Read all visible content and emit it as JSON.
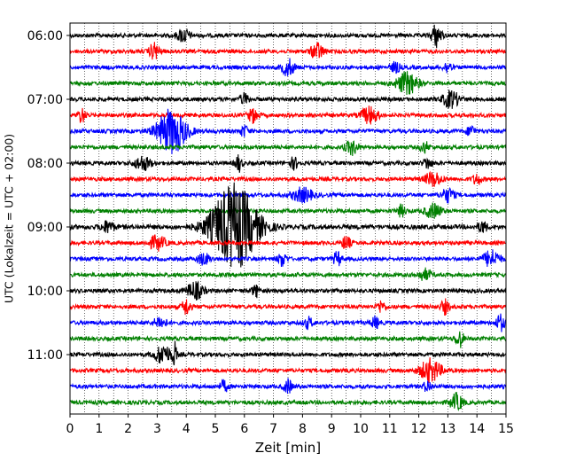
{
  "chart_data": {
    "type": "line",
    "subtype": "helicorder",
    "title": "",
    "xlabel": "Zeit  [min]",
    "ylabel": "UTC (Lokalzeit = UTC + 02:00)",
    "xlim": [
      0,
      15
    ],
    "x_ticks": [
      "0",
      "1",
      "2",
      "3",
      "4",
      "5",
      "6",
      "7",
      "8",
      "9",
      "10",
      "11",
      "12",
      "13",
      "14",
      "15"
    ],
    "y_tick_labels": [
      "06:00",
      "07:00",
      "08:00",
      "09:00",
      "10:00",
      "11:00"
    ],
    "grid": {
      "x": true,
      "y": false,
      "style": "dotted"
    },
    "trace_colors": [
      "#000000",
      "#ff0000",
      "#0000ff",
      "#008000"
    ],
    "start_time": "06:00",
    "trace_length_min": 15,
    "traces": [
      {
        "start": "06:00",
        "color": "#000000",
        "amp": 1.0,
        "events": [
          {
            "t": 3.9,
            "a": 2.5,
            "w": 0.15
          },
          {
            "t": 12.6,
            "a": 4,
            "w": 0.12
          }
        ]
      },
      {
        "start": "06:15",
        "color": "#ff0000",
        "amp": 1.0,
        "events": [
          {
            "t": 2.9,
            "a": 3,
            "w": 0.12
          },
          {
            "t": 8.5,
            "a": 3,
            "w": 0.15
          }
        ]
      },
      {
        "start": "06:30",
        "color": "#0000ff",
        "amp": 1.0,
        "events": [
          {
            "t": 7.5,
            "a": 3,
            "w": 0.15
          },
          {
            "t": 11.2,
            "a": 2,
            "w": 0.1
          },
          {
            "t": 13.0,
            "a": 2,
            "w": 0.1
          }
        ]
      },
      {
        "start": "06:45",
        "color": "#008000",
        "amp": 1.0,
        "events": [
          {
            "t": 11.6,
            "a": 4,
            "w": 0.25
          }
        ]
      },
      {
        "start": "07:00",
        "color": "#000000",
        "amp": 1.0,
        "events": [
          {
            "t": 6.0,
            "a": 2,
            "w": 0.1
          },
          {
            "t": 13.1,
            "a": 3,
            "w": 0.2
          }
        ]
      },
      {
        "start": "07:15",
        "color": "#ff0000",
        "amp": 1.0,
        "events": [
          {
            "t": 0.4,
            "a": 2.5,
            "w": 0.1
          },
          {
            "t": 6.3,
            "a": 2.5,
            "w": 0.12
          },
          {
            "t": 10.3,
            "a": 3,
            "w": 0.2
          }
        ]
      },
      {
        "start": "07:30",
        "color": "#0000ff",
        "amp": 1.0,
        "events": [
          {
            "t": 3.5,
            "a": 8,
            "w": 0.35
          },
          {
            "t": 6.0,
            "a": 2,
            "w": 0.1
          },
          {
            "t": 13.8,
            "a": 2,
            "w": 0.1
          }
        ]
      },
      {
        "start": "07:45",
        "color": "#008000",
        "amp": 1.0,
        "events": [
          {
            "t": 9.7,
            "a": 2.5,
            "w": 0.15
          },
          {
            "t": 12.2,
            "a": 2,
            "w": 0.1
          }
        ]
      },
      {
        "start": "08:00",
        "color": "#000000",
        "amp": 1.0,
        "events": [
          {
            "t": 2.5,
            "a": 2.5,
            "w": 0.2
          },
          {
            "t": 5.8,
            "a": 3,
            "w": 0.08
          },
          {
            "t": 7.7,
            "a": 2,
            "w": 0.1
          },
          {
            "t": 12.3,
            "a": 2,
            "w": 0.1
          }
        ]
      },
      {
        "start": "08:15",
        "color": "#ff0000",
        "amp": 1.0,
        "events": [
          {
            "t": 12.5,
            "a": 2.5,
            "w": 0.2
          },
          {
            "t": 14.0,
            "a": 2,
            "w": 0.1
          }
        ]
      },
      {
        "start": "08:30",
        "color": "#0000ff",
        "amp": 1.0,
        "events": [
          {
            "t": 8.0,
            "a": 2.5,
            "w": 0.25
          },
          {
            "t": 13.0,
            "a": 2.5,
            "w": 0.15
          }
        ]
      },
      {
        "start": "08:45",
        "color": "#008000",
        "amp": 1.0,
        "events": [
          {
            "t": 11.4,
            "a": 2,
            "w": 0.1
          },
          {
            "t": 12.5,
            "a": 2.5,
            "w": 0.2
          }
        ]
      },
      {
        "start": "09:00",
        "color": "#000000",
        "amp": 1.2,
        "events": [
          {
            "t": 5.65,
            "a": 15,
            "w": 0.55
          },
          {
            "t": 1.3,
            "a": 2,
            "w": 0.15
          },
          {
            "t": 14.2,
            "a": 2,
            "w": 0.1
          }
        ]
      },
      {
        "start": "09:15",
        "color": "#ff0000",
        "amp": 1.0,
        "events": [
          {
            "t": 3.0,
            "a": 2.5,
            "w": 0.2
          },
          {
            "t": 9.5,
            "a": 2.5,
            "w": 0.1
          }
        ]
      },
      {
        "start": "09:30",
        "color": "#0000ff",
        "amp": 1.0,
        "events": [
          {
            "t": 4.6,
            "a": 2,
            "w": 0.15
          },
          {
            "t": 7.3,
            "a": 2.5,
            "w": 0.1
          },
          {
            "t": 9.2,
            "a": 2.5,
            "w": 0.1
          },
          {
            "t": 14.5,
            "a": 3,
            "w": 0.2
          }
        ]
      },
      {
        "start": "09:45",
        "color": "#008000",
        "amp": 1.0,
        "events": [
          {
            "t": 12.2,
            "a": 2,
            "w": 0.15
          }
        ]
      },
      {
        "start": "10:00",
        "color": "#000000",
        "amp": 1.0,
        "events": [
          {
            "t": 4.3,
            "a": 3,
            "w": 0.2
          },
          {
            "t": 6.4,
            "a": 2,
            "w": 0.1
          }
        ]
      },
      {
        "start": "10:15",
        "color": "#ff0000",
        "amp": 1.0,
        "events": [
          {
            "t": 4.0,
            "a": 3,
            "w": 0.1
          },
          {
            "t": 10.7,
            "a": 2,
            "w": 0.1
          },
          {
            "t": 12.9,
            "a": 2.5,
            "w": 0.1
          }
        ]
      },
      {
        "start": "10:30",
        "color": "#0000ff",
        "amp": 1.0,
        "events": [
          {
            "t": 3.1,
            "a": 2,
            "w": 0.15
          },
          {
            "t": 8.2,
            "a": 2,
            "w": 0.1
          },
          {
            "t": 10.5,
            "a": 2,
            "w": 0.1
          },
          {
            "t": 14.8,
            "a": 3,
            "w": 0.1
          }
        ]
      },
      {
        "start": "10:45",
        "color": "#008000",
        "amp": 1.0,
        "events": [
          {
            "t": 13.4,
            "a": 3,
            "w": 0.1
          }
        ]
      },
      {
        "start": "11:00",
        "color": "#000000",
        "amp": 1.0,
        "events": [
          {
            "t": 3.2,
            "a": 3.5,
            "w": 0.2
          },
          {
            "t": 3.6,
            "a": 4,
            "w": 0.05
          }
        ]
      },
      {
        "start": "11:15",
        "color": "#ff0000",
        "amp": 1.0,
        "events": [
          {
            "t": 12.4,
            "a": 4,
            "w": 0.25
          }
        ]
      },
      {
        "start": "11:30",
        "color": "#0000ff",
        "amp": 1.0,
        "events": [
          {
            "t": 5.3,
            "a": 2,
            "w": 0.1
          },
          {
            "t": 7.5,
            "a": 2.5,
            "w": 0.1
          },
          {
            "t": 12.3,
            "a": 2,
            "w": 0.1
          }
        ]
      },
      {
        "start": "11:45",
        "color": "#008000",
        "amp": 1.0,
        "events": [
          {
            "t": 13.3,
            "a": 3,
            "w": 0.15
          }
        ]
      }
    ]
  }
}
